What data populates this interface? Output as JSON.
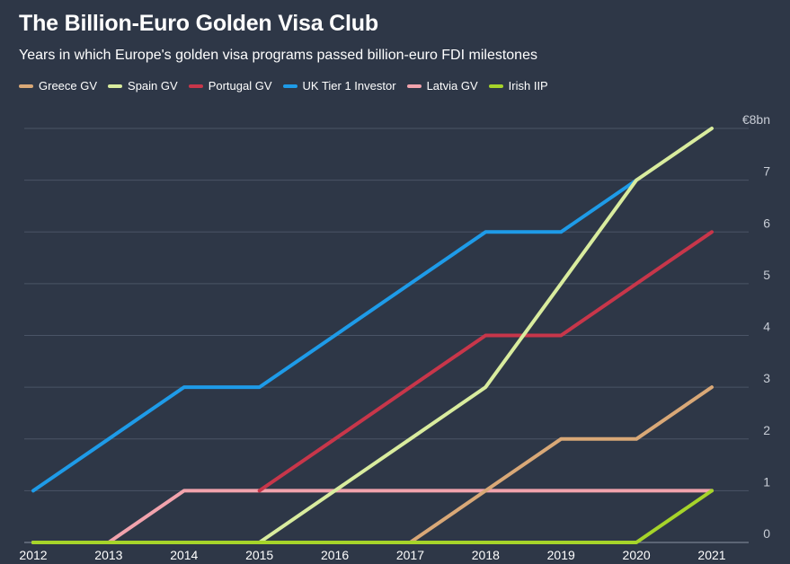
{
  "title": "The Billion-Euro Golden Visa Club",
  "subtitle": "Years in which Europe's golden visa programs passed billion-euro FDI milestones",
  "colors": {
    "background": "#2e3747",
    "grid": "#4a5466",
    "tick_text": "#c8cdd6"
  },
  "chart_data": {
    "type": "line",
    "title": "The Billion-Euro Golden Visa Club",
    "subtitle": "Years in which Europe's golden visa programs passed billion-euro FDI milestones",
    "x": [
      2012,
      2013,
      2014,
      2015,
      2016,
      2017,
      2018,
      2019,
      2020,
      2021
    ],
    "x_tick_labels": [
      "2012",
      "2013",
      "2014",
      "2015",
      "2016",
      "2017",
      "2018",
      "2019",
      "2020",
      "2021"
    ],
    "y_tick_labels": [
      "0",
      "1",
      "2",
      "3",
      "4",
      "5",
      "6",
      "7",
      "€8bn"
    ],
    "ylim": [
      0,
      8
    ],
    "xlim": [
      2012,
      2021.5
    ],
    "grid": true,
    "y_axis_side": "right",
    "legend_position": "top-left",
    "series": [
      {
        "name": "Greece GV",
        "color": "#d9a877",
        "points": [
          [
            2012,
            0
          ],
          [
            2013,
            0
          ],
          [
            2014,
            0
          ],
          [
            2015,
            0
          ],
          [
            2016,
            0
          ],
          [
            2017,
            0
          ],
          [
            2018,
            1
          ],
          [
            2019,
            2
          ],
          [
            2020,
            2
          ],
          [
            2021,
            3
          ]
        ]
      },
      {
        "name": "Spain GV",
        "color": "#d9ec9e",
        "points": [
          [
            2012,
            0
          ],
          [
            2013,
            0
          ],
          [
            2014,
            0
          ],
          [
            2015,
            0
          ],
          [
            2016,
            1
          ],
          [
            2017,
            2
          ],
          [
            2018,
            3
          ],
          [
            2019,
            5
          ],
          [
            2020,
            7
          ],
          [
            2021,
            8
          ]
        ]
      },
      {
        "name": "Portugal GV",
        "color": "#c8364a",
        "points": [
          [
            2015,
            1
          ],
          [
            2016,
            2
          ],
          [
            2017,
            3
          ],
          [
            2018,
            4
          ],
          [
            2019,
            4
          ],
          [
            2020,
            5
          ],
          [
            2021,
            6
          ]
        ]
      },
      {
        "name": "UK Tier 1 Investor",
        "color": "#1e9be8",
        "points": [
          [
            2012,
            1
          ],
          [
            2013,
            2
          ],
          [
            2014,
            3
          ],
          [
            2015,
            3
          ],
          [
            2016,
            4
          ],
          [
            2017,
            5
          ],
          [
            2018,
            6
          ],
          [
            2019,
            6
          ],
          [
            2020,
            7
          ]
        ]
      },
      {
        "name": "Latvia GV",
        "color": "#f2a3ad",
        "points": [
          [
            2012,
            0
          ],
          [
            2013,
            0
          ],
          [
            2014,
            1
          ],
          [
            2015,
            1
          ],
          [
            2016,
            1
          ],
          [
            2017,
            1
          ],
          [
            2018,
            1
          ],
          [
            2019,
            1
          ],
          [
            2020,
            1
          ],
          [
            2021,
            1
          ]
        ]
      },
      {
        "name": "Irish IIP",
        "color": "#a6d42a",
        "points": [
          [
            2012,
            0
          ],
          [
            2013,
            0
          ],
          [
            2014,
            0
          ],
          [
            2015,
            0
          ],
          [
            2016,
            0
          ],
          [
            2017,
            0
          ],
          [
            2018,
            0
          ],
          [
            2019,
            0
          ],
          [
            2020,
            0
          ],
          [
            2021,
            1
          ]
        ]
      }
    ]
  }
}
